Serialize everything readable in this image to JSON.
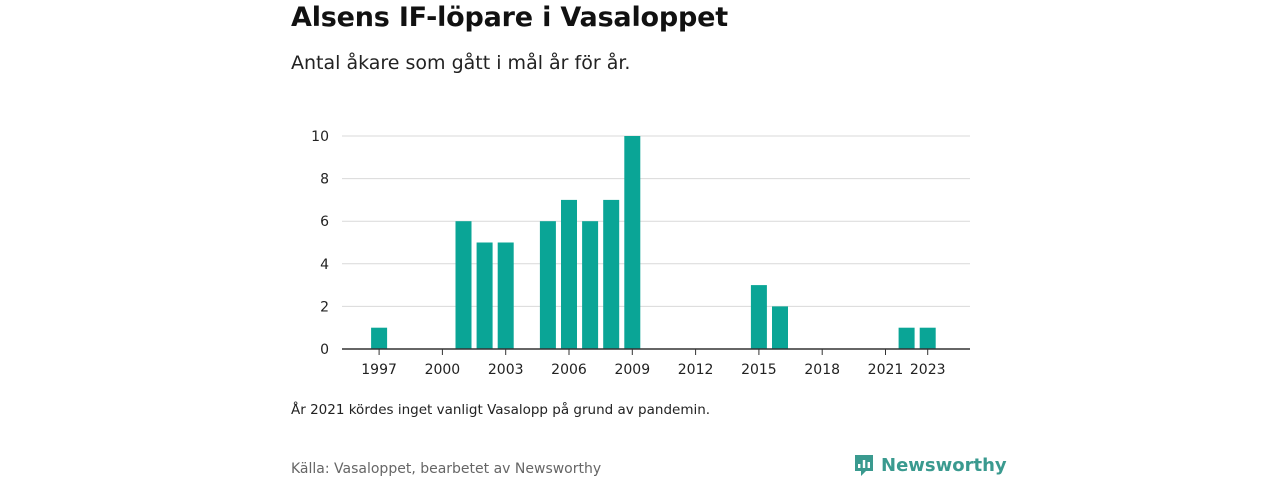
{
  "header": {
    "title": "Alsens IF-löpare i Vasaloppet",
    "subtitle": "Antal åkare som gått i mål år för år."
  },
  "footer": {
    "note": "År 2021 kördes inget vanligt Vasalopp på grund av pandemin.",
    "source": "Källa: Vasaloppet, bearbetet av Newsworthy",
    "brand": "Newsworthy"
  },
  "colors": {
    "bar": "#0aa596",
    "brand": "#3a9a8f",
    "grid": "#d9d9d9",
    "axis": "#333333"
  },
  "chart_data": {
    "type": "bar",
    "title": "Alsens IF-löpare i Vasaloppet",
    "subtitle": "Antal åkare som gått i mål år för år.",
    "xlabel": "",
    "ylabel": "",
    "categories": [
      1996,
      1997,
      1998,
      1999,
      2000,
      2001,
      2002,
      2003,
      2004,
      2005,
      2006,
      2007,
      2008,
      2009,
      2010,
      2011,
      2012,
      2013,
      2014,
      2015,
      2016,
      2017,
      2018,
      2019,
      2020,
      2021,
      2022,
      2023,
      2024
    ],
    "values": [
      0,
      1,
      0,
      0,
      0,
      6,
      5,
      5,
      0,
      6,
      7,
      6,
      7,
      10,
      0,
      0,
      0,
      0,
      0,
      3,
      2,
      0,
      0,
      0,
      0,
      0,
      1,
      1,
      0
    ],
    "x_tick_labels": [
      "1997",
      "2000",
      "2003",
      "2006",
      "2009",
      "2012",
      "2015",
      "2018",
      "2021",
      "2023"
    ],
    "y_ticks": [
      0,
      2,
      4,
      6,
      8,
      10
    ],
    "ylim": [
      0,
      10
    ],
    "grid": true,
    "legend": "none"
  }
}
